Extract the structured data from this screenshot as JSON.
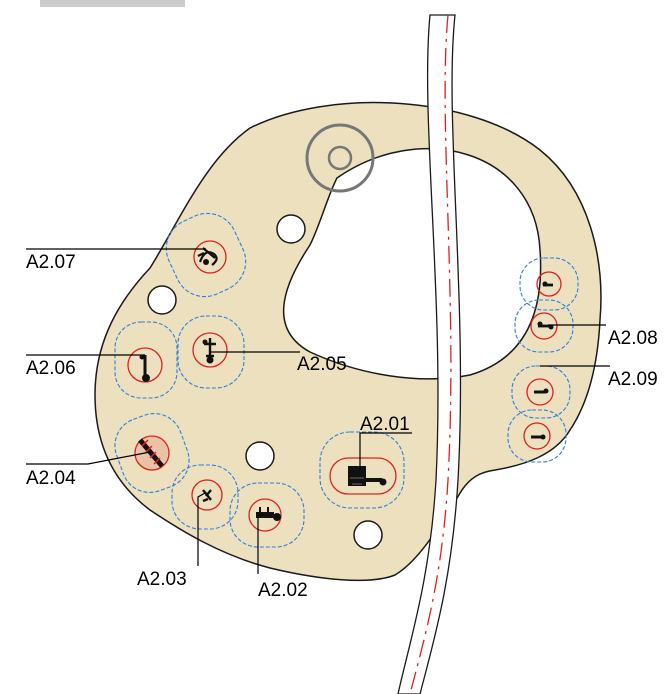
{
  "colors": {
    "plate_fill": "#ede0be",
    "outline": "#1a1a1a",
    "keepout_blue": "#2f7fe0",
    "pad_red": "#e02020",
    "centerline_red": "#e02020",
    "hole_fill": "#ffffff",
    "ring_grey": "#777777"
  },
  "labels": {
    "a201": "A2.01",
    "a202": "A2.02",
    "a203": "A2.03",
    "a204": "A2.04",
    "a205": "A2.05",
    "a206": "A2.06",
    "a207": "A2.07",
    "a208": "A2.08",
    "a209": "A2.09"
  }
}
